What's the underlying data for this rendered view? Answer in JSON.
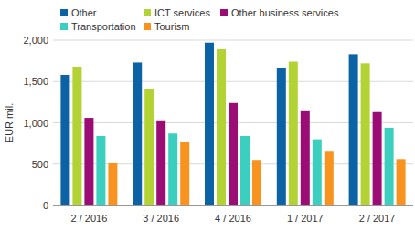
{
  "chart_data": {
    "type": "bar",
    "ylabel": "EUR mil.",
    "categories": [
      "2 / 2016",
      "3 / 2016",
      "4 / 2016",
      "1 / 2017",
      "2 / 2017"
    ],
    "series": [
      {
        "name": "Other",
        "color": "#0b62a4",
        "values": [
          1580,
          1730,
          1970,
          1660,
          1830
        ]
      },
      {
        "name": "ICT services",
        "color": "#b3d334",
        "values": [
          1680,
          1410,
          1890,
          1740,
          1720
        ]
      },
      {
        "name": "Other business services",
        "color": "#9b0d74",
        "values": [
          1060,
          1030,
          1240,
          1140,
          1130
        ]
      },
      {
        "name": "Transportation",
        "color": "#3ccfbf",
        "values": [
          840,
          870,
          840,
          800,
          940
        ]
      },
      {
        "name": "Tourism",
        "color": "#f7931e",
        "values": [
          520,
          770,
          550,
          660,
          560
        ]
      }
    ],
    "ylim": [
      0,
      2000
    ],
    "yticks": [
      0,
      500,
      {
        "value": 1000,
        "label": "1,000"
      },
      {
        "value": 1500,
        "label": "1,500"
      },
      {
        "value": 2000,
        "label": "2,000"
      }
    ],
    "grid": true,
    "legend": "top-left"
  }
}
